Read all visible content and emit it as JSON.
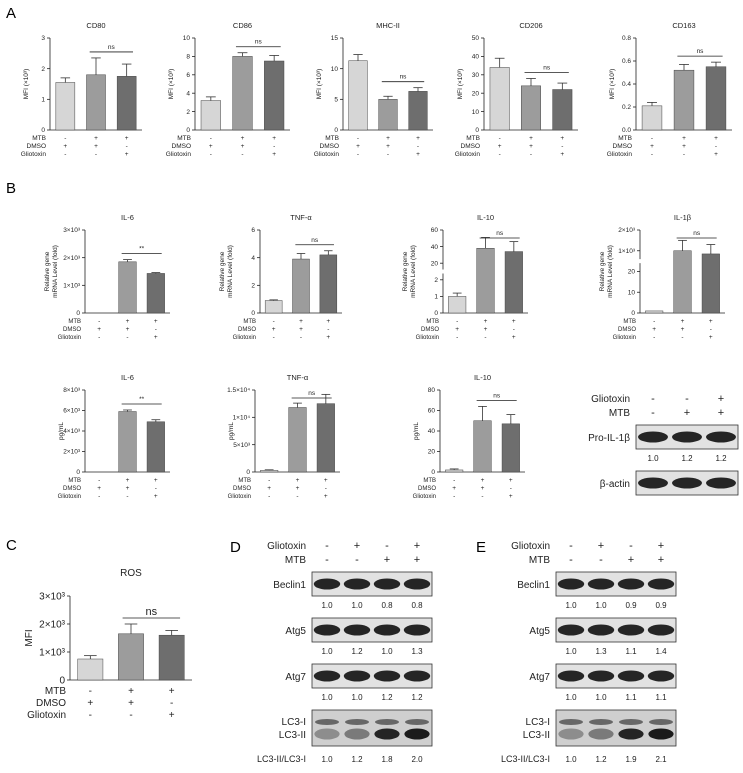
{
  "panel_labels": {
    "a": "A",
    "b": "B",
    "c": "C",
    "d": "D",
    "e": "E"
  },
  "conditions": {
    "row_labels": [
      "MTB",
      "DMSO",
      "Gliotoxin"
    ],
    "symbols": {
      "MTB": [
        "-",
        "+",
        "+"
      ],
      "DMSO": [
        "+",
        "+",
        "-"
      ],
      "Gliotoxin": [
        "-",
        "-",
        "+"
      ]
    }
  },
  "bar_colors": [
    "#d6d6d6",
    "#9c9c9c",
    "#6e6e6e"
  ],
  "sig": {
    "ns": "ns",
    "star2": "**"
  },
  "chart_data": [
    {
      "id": "A1",
      "type": "bar",
      "title": "CD80",
      "ylabel": "MFI (×10³)",
      "ylim": [
        0,
        3
      ],
      "ticks": [
        "0",
        "1",
        "2",
        "3"
      ],
      "values": [
        1.55,
        1.8,
        1.75
      ],
      "errors": [
        0.15,
        0.55,
        0.4
      ],
      "sig": "ns"
    },
    {
      "id": "A2",
      "type": "bar",
      "title": "CD86",
      "ylabel": "MFI (×10³)",
      "ylim": [
        0,
        10
      ],
      "ticks": [
        "0",
        "2",
        "4",
        "6",
        "8",
        "10"
      ],
      "values": [
        3.2,
        8.0,
        7.5
      ],
      "errors": [
        0.4,
        0.4,
        0.6
      ],
      "sig": "ns"
    },
    {
      "id": "A3",
      "type": "bar",
      "title": "MHC-II",
      "ylabel": "MFI (×10³)",
      "ylim": [
        0,
        15
      ],
      "ticks": [
        "0",
        "5",
        "10",
        "15"
      ],
      "values": [
        11.3,
        5.0,
        6.3
      ],
      "errors": [
        1.0,
        0.5,
        0.6
      ],
      "sig": "ns"
    },
    {
      "id": "A4",
      "type": "bar",
      "title": "CD206",
      "ylabel": "MFI (×10³)",
      "ylim": [
        0,
        50
      ],
      "ticks": [
        "0",
        "10",
        "20",
        "30",
        "40",
        "50"
      ],
      "values": [
        34,
        24,
        22
      ],
      "errors": [
        5,
        4,
        3.5
      ],
      "sig": "ns"
    },
    {
      "id": "A5",
      "type": "bar",
      "title": "CD163",
      "ylabel": "MFI (×10³)",
      "ylim": [
        0,
        0.8
      ],
      "ticks": [
        "0.0",
        "0.2",
        "0.4",
        "0.6",
        "0.8"
      ],
      "values": [
        0.21,
        0.52,
        0.55
      ],
      "errors": [
        0.03,
        0.05,
        0.04
      ],
      "sig": "ns"
    },
    {
      "id": "B1",
      "type": "bar",
      "title": "IL-6",
      "ylabel": "Relative gene mRNA Level (fold)",
      "ylim": [
        0,
        3000
      ],
      "ticks": [
        "0",
        "1×10³",
        "2×10³",
        "3×10³"
      ],
      "values": [
        0,
        1850,
        1430
      ],
      "errors": [
        0,
        80,
        30
      ],
      "sig": "**"
    },
    {
      "id": "B2",
      "type": "bar",
      "title": "TNF-α",
      "ylabel": "Relative gene mRNA Level (fold)",
      "ylim": [
        0,
        6
      ],
      "ticks": [
        "0",
        "2",
        "4",
        "6"
      ],
      "values": [
        0.9,
        3.9,
        4.2
      ],
      "errors": [
        0.05,
        0.4,
        0.3
      ],
      "sig": "ns"
    },
    {
      "id": "B3",
      "type": "bar",
      "title": "IL-10",
      "ylabel": "Relative gene mRNA Level (fold)",
      "ylim": [
        0,
        60
      ],
      "ticks": [
        "0",
        "1",
        "2",
        "20",
        "40",
        "60"
      ],
      "values": [
        1,
        38,
        34
      ],
      "errors": [
        0.2,
        13,
        12
      ],
      "sig": "ns"
    },
    {
      "id": "B4",
      "type": "bar",
      "title": "IL-1β",
      "ylabel": "Relative gene mRNA Level (fold)",
      "ylim": [
        0,
        2000
      ],
      "ticks": [
        "0",
        "10",
        "20",
        "1×10³",
        "2×10³"
      ],
      "values": [
        1,
        1000,
        850
      ],
      "errors": [
        0,
        500,
        450
      ],
      "sig": "ns"
    },
    {
      "id": "B5",
      "type": "bar",
      "title": "IL-6",
      "ylabel": "pg/mL",
      "ylim": [
        0,
        8000
      ],
      "ticks": [
        "0",
        "2×10³",
        "4×10³",
        "6×10³",
        "8×10³"
      ],
      "values": [
        0,
        5900,
        4900
      ],
      "errors": [
        0,
        150,
        200
      ],
      "sig": "**"
    },
    {
      "id": "B6",
      "type": "bar",
      "title": "TNF-α",
      "ylabel": "pg/mL",
      "ylim": [
        0,
        15000
      ],
      "ticks": [
        "0",
        "5×10³",
        "1×10⁴",
        "1.5×10⁴"
      ],
      "values": [
        300,
        11800,
        12500
      ],
      "errors": [
        100,
        800,
        1700
      ],
      "sig": "ns"
    },
    {
      "id": "B7",
      "type": "bar",
      "title": "IL-10",
      "ylabel": "pg/mL",
      "ylim": [
        0,
        80
      ],
      "ticks": [
        "0",
        "20",
        "40",
        "60",
        "80"
      ],
      "values": [
        2,
        50,
        47
      ],
      "errors": [
        1,
        14,
        9
      ],
      "sig": "ns"
    },
    {
      "id": "C1",
      "type": "bar",
      "title": "ROS",
      "ylabel": "MFI",
      "ylim": [
        0,
        3000
      ],
      "ticks": [
        "0",
        "1×10³",
        "2×10³",
        "3×10³"
      ],
      "values": [
        750,
        1650,
        1600
      ],
      "errors": [
        120,
        350,
        170
      ],
      "sig": "ns"
    }
  ],
  "western": {
    "b": {
      "header_rows": [
        {
          "label": "Gliotoxin",
          "signs": [
            "-",
            "-",
            "+"
          ]
        },
        {
          "label": "MTB",
          "signs": [
            "-",
            "+",
            "+"
          ]
        }
      ],
      "bands": [
        {
          "label": "Pro-IL-1β",
          "quant": [
            "1.0",
            "1.2",
            "1.2"
          ]
        },
        {
          "label": "β-actin",
          "quant": []
        }
      ]
    },
    "d": {
      "header_rows": [
        {
          "label": "Gliotoxin",
          "signs": [
            "-",
            "+",
            "-",
            "+"
          ]
        },
        {
          "label": "MTB",
          "signs": [
            "-",
            "-",
            "+",
            "+"
          ]
        }
      ],
      "bands": [
        {
          "label": "Beclin1",
          "quant": [
            "1.0",
            "1.0",
            "0.8",
            "0.8"
          ]
        },
        {
          "label": "Atg5",
          "quant": [
            "1.0",
            "1.2",
            "1.0",
            "1.3"
          ]
        },
        {
          "label": "Atg7",
          "quant": [
            "1.0",
            "1.0",
            "1.2",
            "1.2"
          ]
        },
        {
          "label": "LC3-I",
          "label2": "LC3-II",
          "quant": []
        },
        {
          "label": "LC3-II/LC3-I",
          "quant": [
            "1.0",
            "1.2",
            "1.8",
            "2.0"
          ]
        },
        {
          "label": "β-actin",
          "quant": []
        }
      ]
    },
    "e": {
      "header_rows": [
        {
          "label": "Gliotoxin",
          "signs": [
            "-",
            "+",
            "-",
            "+"
          ]
        },
        {
          "label": "MTB",
          "signs": [
            "-",
            "-",
            "+",
            "+"
          ]
        }
      ],
      "bands": [
        {
          "label": "Beclin1",
          "quant": [
            "1.0",
            "1.0",
            "0.9",
            "0.9"
          ]
        },
        {
          "label": "Atg5",
          "quant": [
            "1.0",
            "1.3",
            "1.1",
            "1.4"
          ]
        },
        {
          "label": "Atg7",
          "quant": [
            "1.0",
            "1.0",
            "1.1",
            "1.1"
          ]
        },
        {
          "label": "LC3-I",
          "label2": "LC3-II",
          "quant": []
        },
        {
          "label": "LC3-II/LC3-I",
          "quant": [
            "1.0",
            "1.2",
            "1.9",
            "2.1"
          ]
        },
        {
          "label": "β-actin",
          "quant": []
        }
      ]
    }
  }
}
